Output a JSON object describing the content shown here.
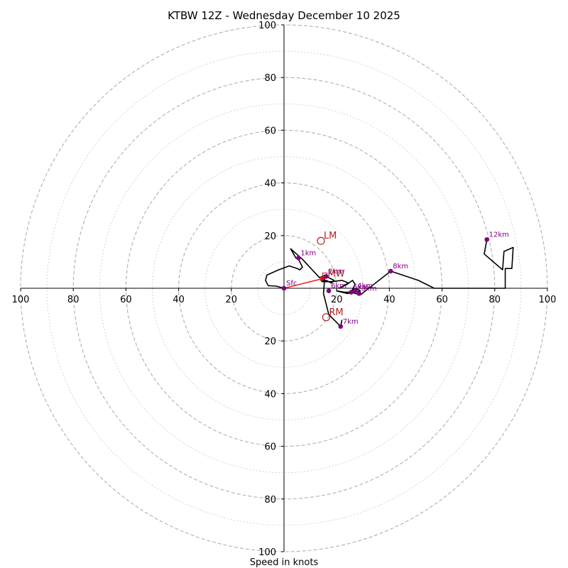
{
  "chart_data": {
    "type": "hodograph",
    "title": "KTBW 12Z - Wednesday December 10 2025",
    "xlabel": "Speed in knots",
    "ring_values": [
      20,
      40,
      60,
      80,
      100
    ],
    "minor_ring_values": [
      10,
      30,
      50,
      70,
      90
    ],
    "max_speed": 100,
    "x_tick_labels": [
      {
        "value": -100,
        "text": "100"
      },
      {
        "value": -80,
        "text": "80"
      },
      {
        "value": -60,
        "text": "60"
      },
      {
        "value": -40,
        "text": "40"
      },
      {
        "value": -20,
        "text": "20"
      },
      {
        "value": 20,
        "text": "20"
      },
      {
        "value": 40,
        "text": "40"
      },
      {
        "value": 60,
        "text": "60"
      },
      {
        "value": 80,
        "text": "80"
      },
      {
        "value": 100,
        "text": "100"
      }
    ],
    "y_tick_labels": [
      {
        "value": 100,
        "text": "100"
      },
      {
        "value": 80,
        "text": "80"
      },
      {
        "value": 60,
        "text": "60"
      },
      {
        "value": 40,
        "text": "40"
      },
      {
        "value": 20,
        "text": "20"
      },
      {
        "value": -20,
        "text": "20"
      },
      {
        "value": -40,
        "text": "40"
      },
      {
        "value": -60,
        "text": "60"
      },
      {
        "value": -80,
        "text": "80"
      },
      {
        "value": -100,
        "text": "100"
      }
    ],
    "hodograph_trace": [
      [
        0,
        0
      ],
      [
        -3,
        0.8
      ],
      [
        -6,
        1
      ],
      [
        -7,
        3
      ],
      [
        -6.5,
        5
      ],
      [
        -2,
        7
      ],
      [
        2,
        8.5
      ],
      [
        5,
        7.5
      ],
      [
        6,
        7
      ],
      [
        7,
        8
      ],
      [
        5.5,
        11
      ],
      [
        4.5,
        11.5
      ],
      [
        2.5,
        15
      ],
      [
        7,
        11
      ],
      [
        13.5,
        4
      ],
      [
        15.5,
        5
      ],
      [
        17,
        4
      ],
      [
        19,
        3
      ],
      [
        18,
        2
      ],
      [
        16,
        3
      ],
      [
        14,
        3
      ],
      [
        14.5,
        2.5
      ],
      [
        18,
        2.5
      ],
      [
        22,
        3
      ],
      [
        24.5,
        2
      ],
      [
        21,
        0
      ],
      [
        24,
        1.5
      ],
      [
        26,
        3
      ],
      [
        27,
        1.5
      ],
      [
        25.5,
        -1.5
      ],
      [
        23,
        -1.5
      ],
      [
        20,
        -1
      ],
      [
        22,
        -1.5
      ],
      [
        24,
        -2
      ],
      [
        27,
        -1.5
      ],
      [
        29,
        -1
      ],
      [
        27,
        0
      ],
      [
        25.5,
        -1.5
      ],
      [
        29,
        -2.5
      ],
      [
        40.5,
        6.5
      ],
      [
        51,
        3
      ],
      [
        57,
        0
      ],
      [
        84,
        0
      ],
      [
        84,
        7.5
      ],
      [
        86.5,
        7.5
      ],
      [
        87,
        15.5
      ],
      [
        83.5,
        14
      ],
      [
        83,
        7
      ],
      [
        76,
        13
      ],
      [
        77,
        18.5
      ]
    ],
    "extra_trace": [
      [
        15.5,
        4.5
      ],
      [
        15,
        -2
      ],
      [
        15.5,
        -4
      ],
      [
        17,
        -10
      ],
      [
        20.5,
        -13.5
      ],
      [
        21.5,
        -14.5
      ],
      [
        22,
        -12
      ]
    ],
    "height_markers": [
      {
        "label": "Sfc",
        "u": 0,
        "v": 0
      },
      {
        "label": "1km",
        "u": 5.5,
        "v": 11.5
      },
      {
        "label": "2km",
        "u": 16,
        "v": 4.5
      },
      {
        "label": "3km",
        "u": 28.5,
        "v": -2
      },
      {
        "label": "4km",
        "u": 27,
        "v": -1
      },
      {
        "label": "5km",
        "u": 25.5,
        "v": -1.5
      },
      {
        "label": "6km",
        "u": 17,
        "v": -1
      },
      {
        "label": "7km",
        "u": 21.5,
        "v": -14.5
      },
      {
        "label": "8km",
        "u": 40.5,
        "v": 6.5
      },
      {
        "label": "12km",
        "u": 77,
        "v": 18.5
      }
    ],
    "storm_motions": [
      {
        "label": "LM",
        "u": 14,
        "v": 18
      },
      {
        "label": "RM",
        "u": 16,
        "v": -11
      }
    ],
    "mean_wind": {
      "label": "MW",
      "u": 15.5,
      "v": 5
    },
    "shear_vector": {
      "from": [
        0,
        0
      ],
      "to": [
        16,
        4
      ]
    },
    "colors": {
      "trace": "#000000",
      "marker": "#800080",
      "storm_motion": "#b22222",
      "shear": "#ff0000",
      "major_ring": "#b0b0b0",
      "minor_ring": "#c8c8c8",
      "axis": "#000000"
    }
  }
}
